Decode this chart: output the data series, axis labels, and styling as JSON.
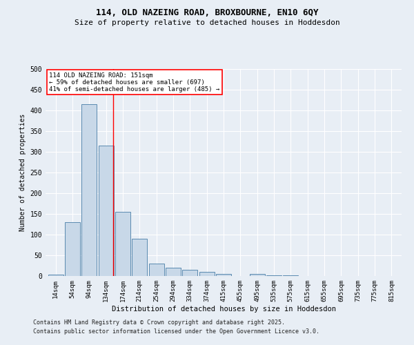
{
  "title_line1": "114, OLD NAZEING ROAD, BROXBOURNE, EN10 6QY",
  "title_line2": "Size of property relative to detached houses in Hoddesdon",
  "xlabel": "Distribution of detached houses by size in Hoddesdon",
  "ylabel": "Number of detached properties",
  "footer_line1": "Contains HM Land Registry data © Crown copyright and database right 2025.",
  "footer_line2": "Contains public sector information licensed under the Open Government Licence v3.0.",
  "bin_labels": [
    "14sqm",
    "54sqm",
    "94sqm",
    "134sqm",
    "174sqm",
    "214sqm",
    "254sqm",
    "294sqm",
    "334sqm",
    "374sqm",
    "415sqm",
    "455sqm",
    "495sqm",
    "535sqm",
    "575sqm",
    "615sqm",
    "655sqm",
    "695sqm",
    "735sqm",
    "775sqm",
    "815sqm"
  ],
  "bar_values": [
    4,
    130,
    415,
    315,
    155,
    90,
    30,
    20,
    15,
    10,
    5,
    0,
    5,
    1,
    2,
    0,
    0,
    0,
    0,
    0,
    0
  ],
  "bar_color": "#c8d8e8",
  "bar_edge_color": "#5a8ab0",
  "background_color": "#e8eef5",
  "grid_color": "#ffffff",
  "red_line_x": 3.425,
  "annotation_text_line1": "114 OLD NAZEING ROAD: 151sqm",
  "annotation_text_line2": "← 59% of detached houses are smaller (697)",
  "annotation_text_line3": "41% of semi-detached houses are larger (485) →",
  "ylim": [
    0,
    500
  ],
  "yticks": [
    0,
    50,
    100,
    150,
    200,
    250,
    300,
    350,
    400,
    450,
    500
  ]
}
